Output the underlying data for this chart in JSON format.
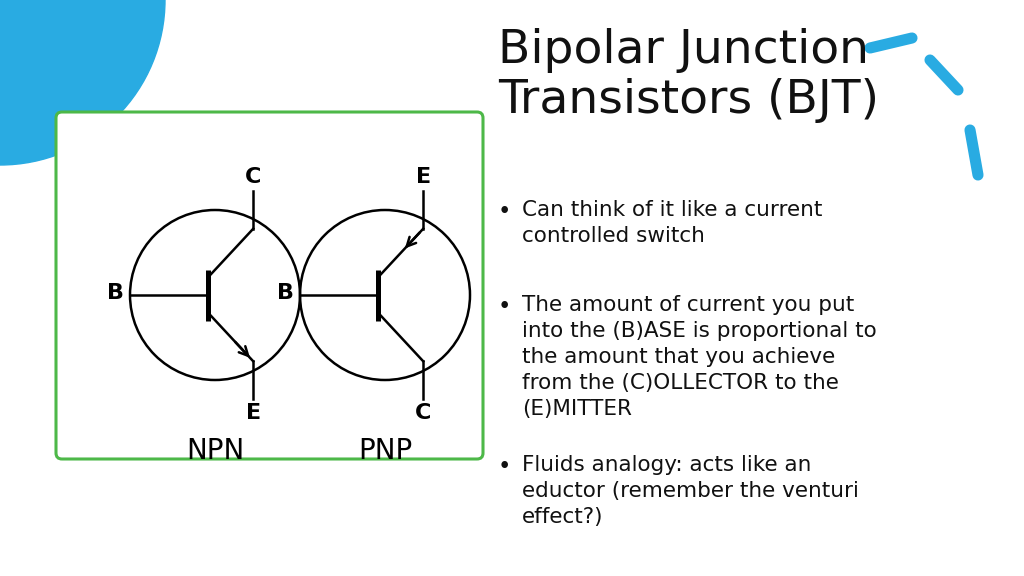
{
  "title": "Bipolar Junction\nTransistors (BJT)",
  "title_fontsize": 34,
  "title_color": "#111111",
  "bullet_color": "#111111",
  "bullet_fontsize": 15.5,
  "bullets": [
    "Can think of it like a current\ncontrolled switch",
    "The amount of current you put\ninto the (B)ASE is proportional to\nthe amount that you achieve\nfrom the (C)OLLECTOR to the\n(E)MITTER",
    "Fluids analogy: acts like an\neductor (remember the venturi\neffect?)"
  ],
  "box_color": "#4db848",
  "background_color": "#ffffff",
  "accent_color": "#29abe2",
  "npn_label": "NPN",
  "pnp_label": "PNP",
  "label_fontsize": 20,
  "terminal_fontsize": 16
}
